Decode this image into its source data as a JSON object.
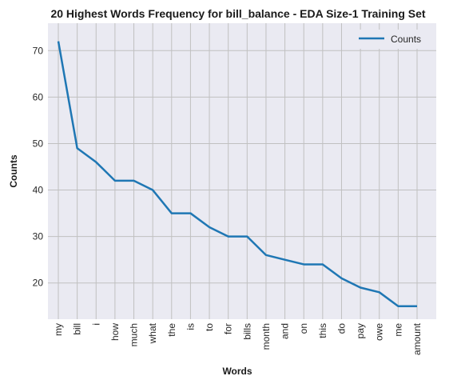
{
  "chart_data": {
    "type": "line",
    "title": "20 Highest Words Frequency for bill_balance - EDA Size-1 Training Set",
    "xlabel": "Words",
    "ylabel": "Counts",
    "categories": [
      "my",
      "bill",
      "i",
      "how",
      "much",
      "what",
      "the",
      "is",
      "to",
      "for",
      "bills",
      "month",
      "and",
      "on",
      "this",
      "do",
      "pay",
      "owe",
      "me",
      "amount"
    ],
    "series": [
      {
        "name": "Counts",
        "values": [
          72,
          49,
          46,
          42,
          42,
          40,
          35,
          35,
          32,
          30,
          30,
          26,
          25,
          24,
          24,
          21,
          19,
          18,
          15,
          15
        ]
      }
    ],
    "ylim": [
      12.2,
      75.9
    ],
    "yticks": [
      20,
      30,
      40,
      50,
      60,
      70
    ],
    "grid": true,
    "legend": "top-right",
    "colors": {
      "line": "#1f77b4",
      "plot_bg": "#eaeaf2",
      "grid": "#c0c0c0"
    }
  }
}
